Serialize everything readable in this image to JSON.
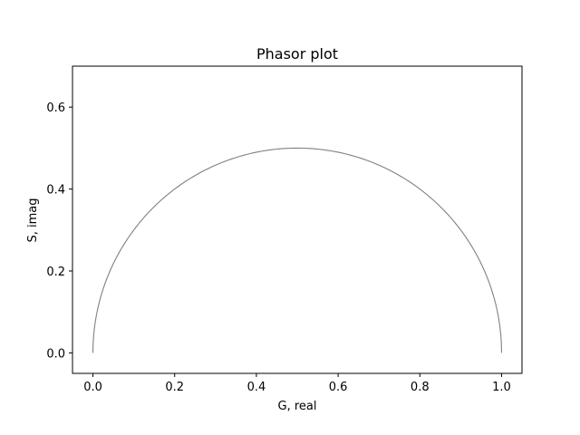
{
  "chart_data": {
    "type": "line",
    "title": "Phasor plot",
    "xlabel": "G, real",
    "ylabel": "S, imag",
    "xlim": [
      -0.05,
      1.05
    ],
    "ylim": [
      -0.05,
      0.7
    ],
    "xticks": [
      0.0,
      0.2,
      0.4,
      0.6,
      0.8,
      1.0
    ],
    "xtick_labels": [
      "0.0",
      "0.2",
      "0.4",
      "0.6",
      "0.8",
      "1.0"
    ],
    "yticks": [
      0.0,
      0.2,
      0.4,
      0.6
    ],
    "ytick_labels": [
      "0.0",
      "0.2",
      "0.4",
      "0.6"
    ],
    "grid": false,
    "legend": "none",
    "series": [
      {
        "description": "universal semicircle: center (0.5, 0), radius 0.5, from G=0 to G=1",
        "color": "#808080",
        "center": [
          0.5,
          0.0
        ],
        "radius": 0.5
      }
    ]
  }
}
